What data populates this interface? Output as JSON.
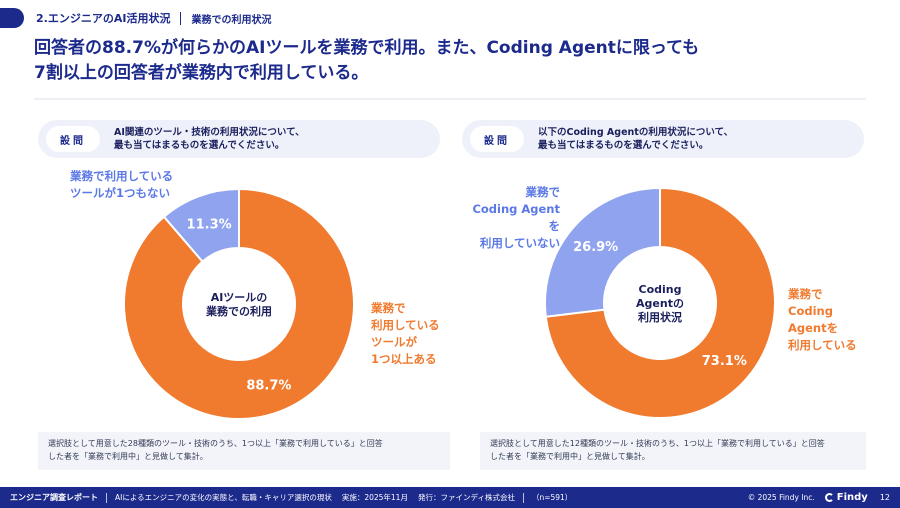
{
  "header": {
    "section": "2.エンジニアのAI活用状況",
    "subsection": "業務での利用状況"
  },
  "headline": {
    "line1": "回答者の88.7%が何らかのAIツールを業務で利用。また、Coding Agentに限っても",
    "line2": "7割以上の回答者が業務内で利用している。"
  },
  "question_badge": "設問",
  "left": {
    "question_line1": "AI関連のツール・技術の利用状況について、",
    "question_line2": "最も当てはまるものを選んでください。",
    "note_line1": "選択肢として用意した28種類のツール・技術のうち、1つ以上「業務で利用している」と回答",
    "note_line2": "した者を「業務で利用中」と見做して集計。"
  },
  "right": {
    "question_line1": "以下のCoding Agentの利用状況について、",
    "question_line2": "最も当てはまるものを選んでください。",
    "note_line1": "選択肢として用意した12種類のツール・技術のうち、1つ以上「業務で利用している」と回答",
    "note_line2": "した者を「業務で利用中」と見做して集計。"
  },
  "chart_data": [
    {
      "type": "pie",
      "title": "AIツールの業務での利用",
      "center_label": [
        "AIツールの",
        "業務での利用"
      ],
      "slices": [
        {
          "label": "業務で利用しているツールが1つ以上ある",
          "label_lines": [
            "業務で",
            "利用している",
            "ツールが",
            "1つ以上ある"
          ],
          "value": 88.7,
          "display": "88.7%",
          "color": "#f07a2e"
        },
        {
          "label": "業務で利用しているツールが1つもない",
          "label_lines": [
            "業務で利用している",
            "ツールが1つもない"
          ],
          "value": 11.3,
          "display": "11.3%",
          "color": "#8fa3ee"
        }
      ]
    },
    {
      "type": "pie",
      "title": "Coding Agentの利用状況",
      "center_label": [
        "Coding",
        "Agentの",
        "利用状況"
      ],
      "slices": [
        {
          "label": "業務でCoding Agentを利用している",
          "label_lines": [
            "業務で",
            "Coding",
            "Agentを",
            "利用している"
          ],
          "value": 73.1,
          "display": "73.1%",
          "color": "#f07a2e"
        },
        {
          "label": "業務でCoding Agentを利用していない",
          "label_lines": [
            "業務で",
            "Coding Agentを",
            "利用していない"
          ],
          "value": 26.9,
          "display": "26.9%",
          "color": "#8fa3ee"
        }
      ]
    }
  ],
  "footer": {
    "title": "エンジニア調査レポート",
    "subtitle": "AIによるエンジニアの変化の実態と、転職・キャリア選択の現状",
    "period": "実施：2025年11月",
    "publisher": "発行：ファインディ株式会社",
    "sample": "（n=591）",
    "copyright": "© 2025 Findy Inc.",
    "logo": "Findy",
    "page": "12"
  },
  "colors": {
    "navy": "#1c2a8c",
    "orange": "#f07a2e",
    "blue": "#8fa3ee"
  }
}
